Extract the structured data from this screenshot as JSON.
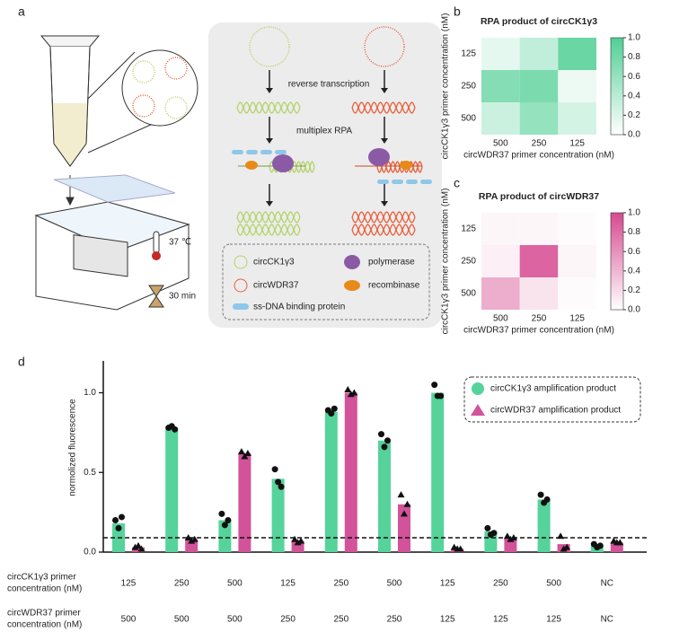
{
  "panel_labels": [
    "a",
    "b",
    "c",
    "d"
  ],
  "diagram": {
    "steps": [
      "reverse transcription",
      "multiplex RPA"
    ],
    "legend": [
      "circCK1γ3",
      "polymerase",
      "circWDR37",
      "recombinase",
      "ss-DNA binding protein"
    ],
    "temperature": "37 ℃",
    "time": "30 min"
  },
  "chart_data": [
    {
      "type": "heatmap",
      "title": "RPA product of circCK1γ3",
      "x": [
        "500",
        "250",
        "125"
      ],
      "y": [
        "125",
        "250",
        "500"
      ],
      "xlabel": "circWDR37 primer concentration (nM)",
      "ylabel": "circCK1γ3 primer concentration (nM)",
      "values": [
        [
          0.15,
          0.35,
          0.85
        ],
        [
          0.7,
          0.75,
          0.1
        ],
        [
          0.3,
          0.6,
          0.25
        ]
      ],
      "color_low": "#ffffff",
      "color_high": "#4fcf94",
      "clim": [
        0,
        1
      ],
      "cticks": [
        {
          "value": 0,
          "label": "0.0"
        },
        0.2,
        0.4,
        0.6,
        0.8,
        {
          "value": 1,
          "label": "1.0"
        }
      ]
    },
    {
      "type": "heatmap",
      "title": "RPA product of circWDR37",
      "x": [
        "500",
        "250",
        "125"
      ],
      "y": [
        "125",
        "250",
        "500"
      ],
      "xlabel": "circWDR37 primer concentration (nM)",
      "ylabel": "circCK1γ3 primer concentration (nM)",
      "values": [
        [
          0.05,
          0.05,
          0.02
        ],
        [
          0.08,
          0.85,
          0.05
        ],
        [
          0.45,
          0.15,
          0.02
        ]
      ],
      "color_low": "#ffffff",
      "color_high": "#d6498f",
      "clim": [
        0,
        1
      ],
      "cticks": [
        {
          "value": 0,
          "label": "0.0"
        },
        0.2,
        0.4,
        0.6,
        0.8,
        {
          "value": 1,
          "label": "1.0"
        }
      ]
    },
    {
      "type": "bar",
      "ylabel": "normolized fluorescence",
      "category_rows": [
        {
          "label": [
            "circCK1γ3 primer",
            "concentration (nM)"
          ],
          "labels": [
            "125",
            "250",
            "500",
            "125",
            "250",
            "500",
            "125",
            "250",
            "500",
            "NC"
          ]
        },
        {
          "label": [
            "circWDR37 primer",
            "concentration (nM)"
          ],
          "labels": [
            "500",
            "500",
            "500",
            "250",
            "250",
            "250",
            "125",
            "125",
            "125",
            "NC"
          ]
        }
      ],
      "series": [
        {
          "name": "circCK1γ3 amplification product",
          "color": "#55d39b",
          "marker": "circle",
          "values": [
            0.18,
            0.78,
            0.2,
            0.46,
            0.88,
            0.7,
            1.0,
            0.13,
            0.33,
            0.04
          ],
          "points": [
            [
              0.2,
              0.15,
              0.22
            ],
            [
              0.78,
              0.79,
              0.77
            ],
            [
              0.24,
              0.17,
              0.2
            ],
            [
              0.52,
              0.44,
              0.41
            ],
            [
              0.89,
              0.87,
              0.9
            ],
            [
              0.74,
              0.66,
              0.7
            ],
            [
              1.05,
              0.98,
              0.98
            ],
            [
              0.15,
              0.11,
              0.12
            ],
            [
              0.36,
              0.31,
              0.33
            ],
            [
              0.05,
              0.03,
              0.04
            ]
          ]
        },
        {
          "name": "circWDR37 amplification product",
          "color": "#d2539a",
          "marker": "triangle",
          "values": [
            0.03,
            0.08,
            0.62,
            0.07,
            1.0,
            0.3,
            0.02,
            0.09,
            0.05,
            0.06
          ],
          "points": [
            [
              0.03,
              0.04,
              0.02
            ],
            [
              0.09,
              0.07,
              0.08
            ],
            [
              0.63,
              0.6,
              0.62
            ],
            [
              0.08,
              0.06,
              0.07
            ],
            [
              1.02,
              0.99,
              1.0
            ],
            [
              0.36,
              0.24,
              0.3
            ],
            [
              0.03,
              0.02,
              0.02
            ],
            [
              0.1,
              0.08,
              0.09
            ],
            [
              0.1,
              0.02,
              0.03
            ],
            [
              0.07,
              0.06,
              0.06
            ]
          ]
        }
      ],
      "threshold": 0.09,
      "ylim": [
        0,
        1.2
      ],
      "yticks": [
        {
          "value": 0,
          "label": "0.0"
        },
        {
          "value": 0.5,
          "label": "0.5"
        },
        {
          "value": 1,
          "label": "1.0"
        }
      ]
    }
  ]
}
